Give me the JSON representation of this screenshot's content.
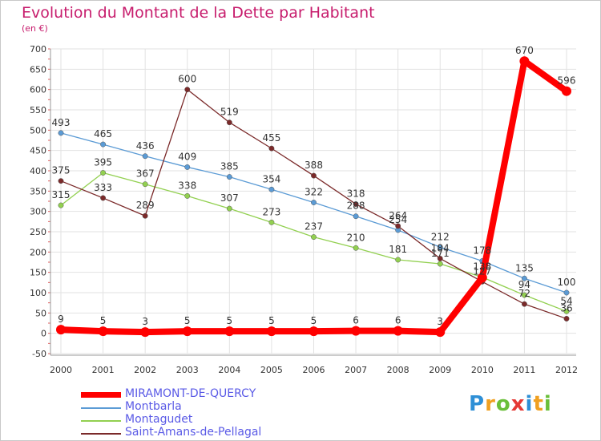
{
  "chart_data": {
    "type": "line",
    "title": "Evolution du Montant de la Dette par Habitant",
    "subtitle": "(en €)",
    "x": [
      "2000",
      "2001",
      "2002",
      "2003",
      "2004",
      "2005",
      "2006",
      "2007",
      "2008",
      "2009",
      "2010",
      "2011",
      "2012"
    ],
    "ylim": [
      -50,
      700
    ],
    "yticks": [
      -50,
      0,
      50,
      100,
      150,
      200,
      250,
      300,
      350,
      400,
      450,
      500,
      550,
      600,
      650,
      700
    ],
    "grid": true,
    "legend_position": "bottom-left",
    "series": [
      {
        "name": "MIRAMONT-DE-QUERCY",
        "color": "#ff0000",
        "values": [
          9,
          5,
          3,
          5,
          5,
          5,
          5,
          6,
          6,
          3,
          137,
          670,
          596
        ],
        "labels": [
          "9",
          "5",
          "3",
          "5",
          "5",
          "5",
          "5",
          "6",
          "6",
          "3",
          "",
          "670",
          "596"
        ]
      },
      {
        "name": "Montbarla",
        "color": "#5b9bd5",
        "values": [
          493,
          465,
          436,
          409,
          385,
          354,
          322,
          288,
          254,
          212,
          178,
          135,
          100
        ],
        "labels": [
          "493",
          "465",
          "436",
          "409",
          "385",
          "354",
          "322",
          "288",
          "254",
          "212",
          "178",
          "135",
          "100"
        ]
      },
      {
        "name": "Montagudet",
        "color": "#92d050",
        "values": [
          315,
          395,
          367,
          338,
          307,
          273,
          237,
          210,
          181,
          171,
          138,
          94,
          54
        ],
        "labels": [
          "315",
          "395",
          "367",
          "338",
          "307",
          "273",
          "237",
          "210",
          "181",
          "171",
          "138",
          "94",
          "54"
        ]
      },
      {
        "name": "Saint-Amans-de-Pellagal",
        "color": "#7b2a2a",
        "values": [
          375,
          333,
          289,
          600,
          519,
          455,
          388,
          318,
          264,
          184,
          127,
          72,
          36
        ],
        "labels": [
          "375",
          "333",
          "289",
          "600",
          "519",
          "455",
          "388",
          "318",
          "264",
          "184",
          "127",
          "72",
          "36"
        ]
      }
    ]
  },
  "logo": {
    "letters": [
      "P",
      "r",
      "o",
      "x",
      "i",
      "t",
      "i"
    ],
    "colors": [
      "#2e8fd6",
      "#f0a020",
      "#6abf3a",
      "#e53935",
      "#2e8fd6",
      "#f0a020",
      "#6abf3a"
    ]
  }
}
